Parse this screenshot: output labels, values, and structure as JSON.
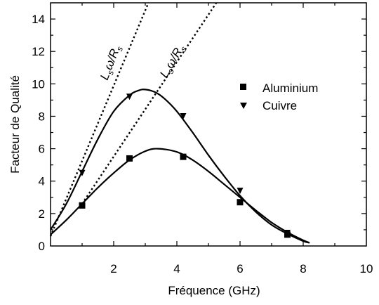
{
  "chart_data": {
    "type": "line",
    "xlabel": "Fréquence (GHz)",
    "ylabel": "Facteur de Qualité",
    "xlim": [
      0,
      10
    ],
    "ylim": [
      0,
      15
    ],
    "x_ticks": [
      2,
      4,
      6,
      8,
      10
    ],
    "y_ticks": [
      0,
      2,
      4,
      6,
      8,
      10,
      12,
      14
    ],
    "grid": false,
    "legend_position": "top-right",
    "series": [
      {
        "name": "Aluminium",
        "marker": "square",
        "measured": {
          "x": [
            1.0,
            2.5,
            4.2,
            6.0,
            7.5
          ],
          "y": [
            2.5,
            5.4,
            5.5,
            2.7,
            0.7
          ]
        },
        "fit": {
          "x": [
            0,
            0.5,
            1.0,
            1.5,
            2.0,
            2.5,
            3.0,
            3.4,
            4.0,
            4.5,
            5.0,
            5.5,
            6.0,
            6.5,
            7.0,
            7.5,
            8.0,
            8.2
          ],
          "y": [
            0.7,
            1.6,
            2.6,
            3.6,
            4.5,
            5.3,
            5.85,
            6.0,
            5.8,
            5.3,
            4.6,
            3.8,
            3.0,
            2.2,
            1.45,
            0.85,
            0.35,
            0.2
          ]
        }
      },
      {
        "name": "Cuivre",
        "marker": "triangle-down",
        "measured": {
          "x": [
            1.0,
            2.5,
            4.2,
            6.0,
            7.5
          ],
          "y": [
            4.5,
            9.2,
            8.0,
            3.4,
            0.8
          ]
        },
        "fit": {
          "x": [
            0,
            0.5,
            1.0,
            1.5,
            2.0,
            2.5,
            2.8,
            3.0,
            3.3,
            3.6,
            4.0,
            4.5,
            5.0,
            5.5,
            6.0,
            6.5,
            7.0,
            7.5,
            8.0,
            8.2
          ],
          "y": [
            1.0,
            2.6,
            4.6,
            6.6,
            8.3,
            9.3,
            9.6,
            9.65,
            9.5,
            9.1,
            8.3,
            7.0,
            5.6,
            4.3,
            3.1,
            2.1,
            1.3,
            0.75,
            0.3,
            0.2
          ]
        }
      }
    ],
    "reference_lines": [
      {
        "label": "Lsω/Rs",
        "style": "dotted",
        "x": [
          0,
          3.1
        ],
        "y": [
          0.6,
          15
        ]
      },
      {
        "label": "Lsω/Rs",
        "style": "dotted",
        "x": [
          1.0,
          5.25
        ],
        "y": [
          2.6,
          15
        ]
      }
    ]
  },
  "annotations": [
    {
      "main": "L",
      "sub": "s",
      "mid": "ω/R",
      "sub2": "s"
    },
    {
      "main": "L",
      "sub": "s",
      "mid": "ω/R",
      "sub2": "s"
    }
  ]
}
